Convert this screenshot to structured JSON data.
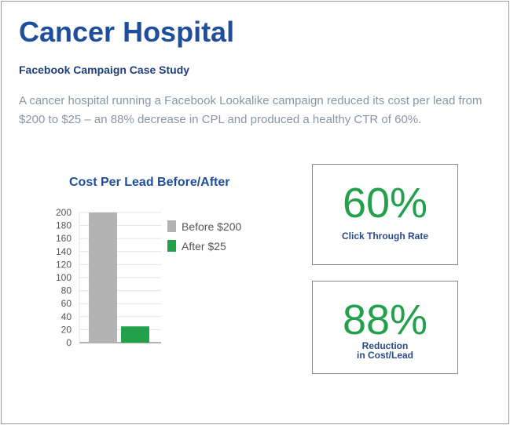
{
  "header": {
    "title": "Cancer Hospital",
    "subtitle": "Facebook Campaign Case Study",
    "description": "A cancer hospital running a Facebook Lookalike campaign reduced its cost per lead from $200 to $25 – an 88% decrease in CPL and produced a healthy CTR of 60%."
  },
  "chart_data": {
    "type": "bar",
    "title": "Cost Per Lead Before/After",
    "categories": [
      "Before $200",
      "After $25"
    ],
    "values": [
      200,
      25
    ],
    "colors": [
      "#b3b3b3",
      "#22a04b"
    ],
    "ylim": [
      0,
      200
    ],
    "yticks": [
      0,
      20,
      40,
      60,
      80,
      100,
      120,
      140,
      160,
      180,
      200
    ],
    "grid": true,
    "legend": "right",
    "xlabel": "",
    "ylabel": ""
  },
  "stats": [
    {
      "value": "60%",
      "label": "Click Through Rate"
    },
    {
      "value": "88%",
      "label_line1": "Reduction",
      "label_line2": "in Cost/Lead"
    }
  ],
  "colors": {
    "accent": "#1f4f9c",
    "green": "#22a04b"
  }
}
